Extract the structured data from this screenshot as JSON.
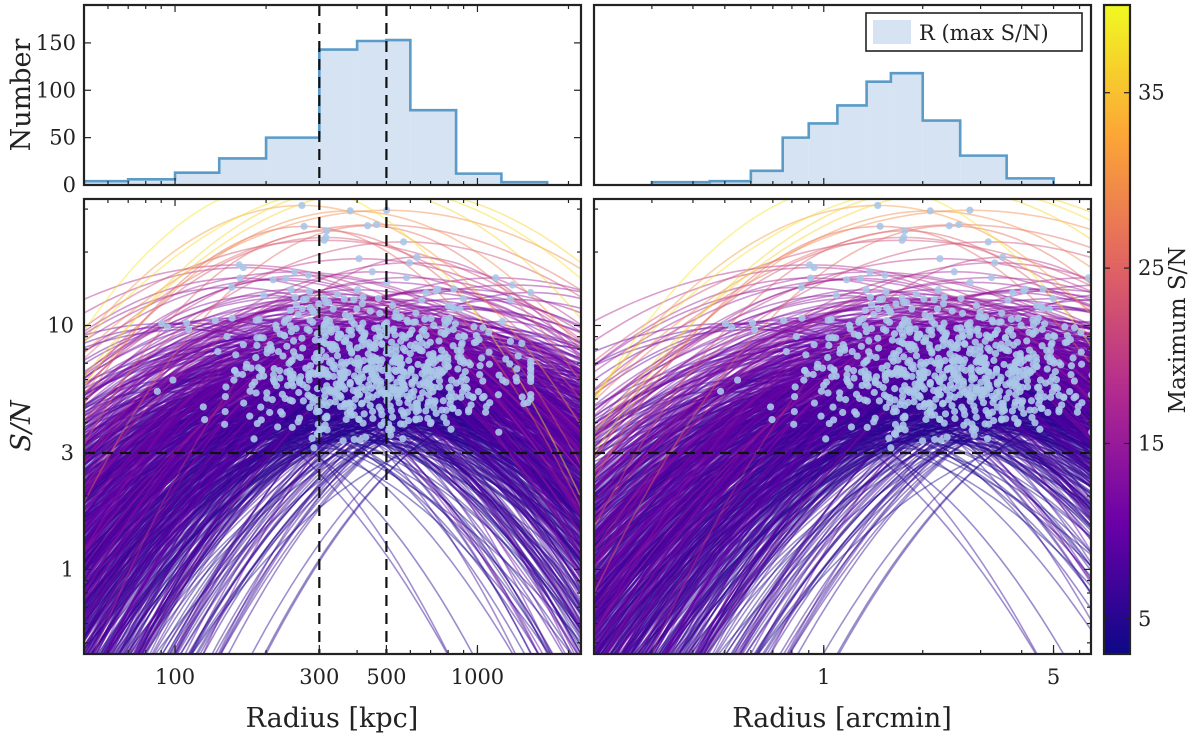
{
  "chart_data": [
    {
      "panel": "top-left",
      "type": "histogram",
      "ylabel": "Number",
      "x_scale": "log",
      "xlim": [
        50,
        2200
      ],
      "ylim": [
        0,
        190
      ],
      "yticks": [
        0,
        50,
        100,
        150
      ],
      "bin_edges": [
        50,
        70,
        100,
        140,
        200,
        300,
        400,
        500,
        600,
        850,
        1200,
        1700
      ],
      "counts": [
        4,
        6,
        13,
        28,
        50,
        143,
        152,
        153,
        79,
        12,
        3
      ],
      "vlines": [
        300,
        500
      ]
    },
    {
      "panel": "top-right",
      "type": "histogram",
      "x_scale": "log",
      "xlim": [
        0.2,
        6.5
      ],
      "ylim": [
        0,
        190
      ],
      "bin_edges": [
        0.3,
        0.45,
        0.6,
        0.75,
        0.9,
        1.1,
        1.35,
        1.6,
        2.0,
        2.6,
        3.6,
        5.0
      ],
      "counts": [
        3,
        4,
        15,
        50,
        65,
        84,
        109,
        118,
        68,
        31,
        7
      ],
      "legend": {
        "label": "R (max S/N)",
        "placement": "top-right"
      }
    },
    {
      "panel": "bottom-left",
      "type": "line",
      "xlabel": "Radius [kpc]",
      "ylabel": "S/N",
      "x_scale": "log",
      "y_scale": "log",
      "xlim": [
        50,
        2200
      ],
      "ylim": [
        0.45,
        33
      ],
      "xticks": [
        100,
        300,
        500,
        1000
      ],
      "yticks": [
        1,
        3,
        10
      ],
      "hline": 3,
      "vlines": [
        300,
        500
      ]
    },
    {
      "panel": "bottom-right",
      "type": "line",
      "xlabel": "Radius [arcmin]",
      "x_scale": "log",
      "y_scale": "log",
      "xlim": [
        0.2,
        6.5
      ],
      "ylim": [
        0.45,
        33
      ],
      "xticks": [
        1,
        5
      ],
      "hline": 3
    },
    {
      "panel": "colorbar",
      "type": "colorbar",
      "label": "Maximum S/N",
      "range": [
        3,
        40
      ],
      "ticks": [
        5,
        15,
        25,
        35
      ],
      "colors": [
        "#0d0887",
        "#6a00a8",
        "#b12a90",
        "#e16462",
        "#fca636",
        "#f0f921"
      ]
    }
  ]
}
